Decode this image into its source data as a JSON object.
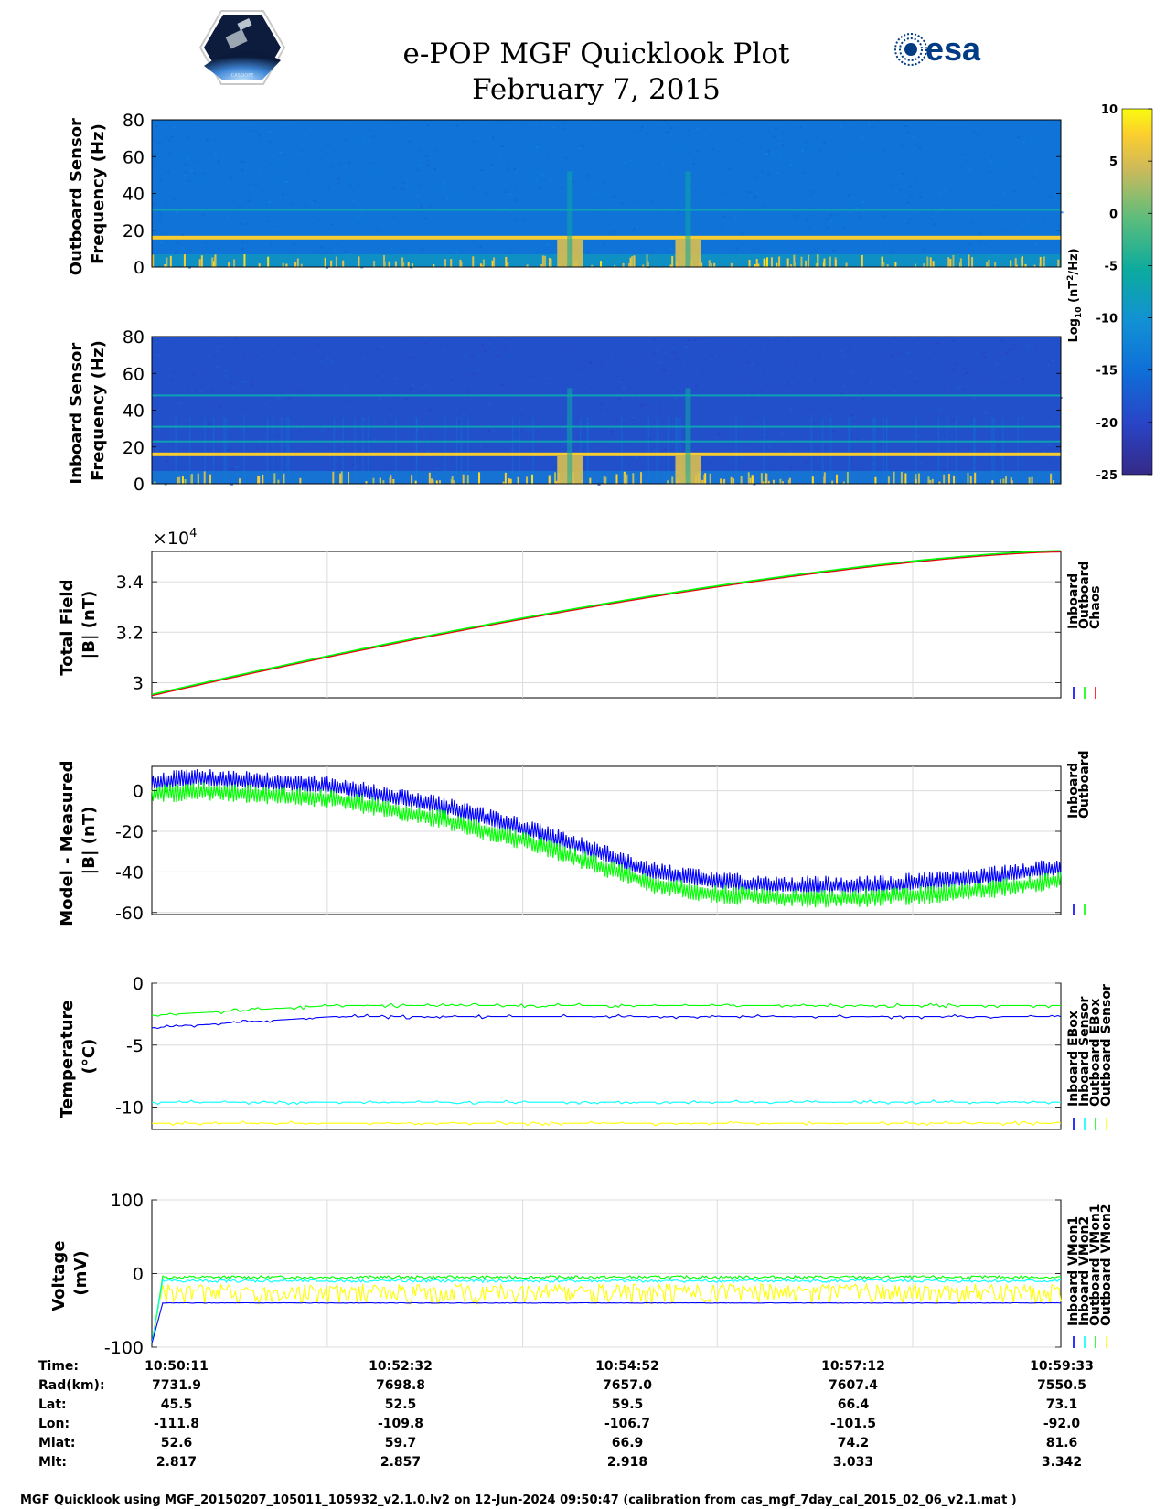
{
  "header": {
    "title_line1": "e-POP MGF Quicklook Plot",
    "title_line2": "February 7, 2015",
    "logo_left_text": "CASSIOPE",
    "logo_right_text": "esa"
  },
  "colorbar": {
    "label": "Log10 (nT^2/Hz)",
    "label_main": "Log",
    "label_sub": "10",
    "label_unit_a": " (nT",
    "label_unit_sup": "2",
    "label_unit_b": "/Hz)",
    "min": -25,
    "max": 10,
    "ticks": [
      "10",
      "5",
      "0",
      "-5",
      "-10",
      "-15",
      "-20",
      "-25"
    ]
  },
  "chart_data": [
    {
      "type": "heatmap",
      "id": "outboard-spectrogram",
      "ylabel_line1": "Outboard Sensor",
      "ylabel_line2": "Frequency (Hz)",
      "ylim": [
        0,
        80
      ],
      "yticks": [
        "0",
        "20",
        "40",
        "60",
        "80"
      ],
      "lines_hz": [
        16,
        31
      ],
      "bursts_fraction": [
        0.46,
        0.59
      ]
    },
    {
      "type": "heatmap",
      "id": "inboard-spectrogram",
      "ylabel_line1": "Inboard Sensor",
      "ylabel_line2": "Frequency (Hz)",
      "ylim": [
        0,
        80
      ],
      "yticks": [
        "0",
        "20",
        "40",
        "60",
        "80"
      ],
      "lines_hz": [
        16,
        23,
        31,
        48
      ],
      "bursts_fraction": [
        0.46,
        0.59
      ]
    },
    {
      "type": "line",
      "id": "total-field",
      "ylabel_line1": "Total Field",
      "ylabel_line2": "|B| (nT)",
      "exponent_label": "×10",
      "exponent_power": "4",
      "ylim": [
        2.94,
        3.52
      ],
      "yticks": [
        "3",
        "3.2",
        "3.4"
      ],
      "ytick_values": [
        3.0,
        3.2,
        3.4
      ],
      "legend": [
        {
          "name": "Inboard",
          "color": "#0000ff"
        },
        {
          "name": "Outboard",
          "color": "#00ff00"
        },
        {
          "name": "Chaos",
          "color": "#ff0000"
        }
      ],
      "series_start": 2.95,
      "series_end": 3.52
    },
    {
      "type": "line",
      "id": "model-minus-measured",
      "ylabel_line1": "Model - Measured",
      "ylabel_line2": "|B| (nT)",
      "ylim": [
        -61,
        12
      ],
      "yticks": [
        "0",
        "-20",
        "-40",
        "-60"
      ],
      "ytick_values": [
        0,
        -20,
        -40,
        -60
      ],
      "legend": [
        {
          "name": "Inboard",
          "color": "#0000ff"
        },
        {
          "name": "Outboard",
          "color": "#00ff00"
        }
      ],
      "profile_x": [
        0,
        0.05,
        0.2,
        0.32,
        0.42,
        0.5,
        0.55,
        0.62,
        0.7,
        0.78,
        0.86,
        0.93,
        1.0
      ],
      "profile_y": [
        4,
        6,
        2,
        -8,
        -20,
        -32,
        -40,
        -45,
        -47,
        -47,
        -45,
        -42,
        -38
      ],
      "offset_outboard": -6,
      "noise_amp": 4
    },
    {
      "type": "line",
      "id": "temperature",
      "ylabel_line1": "Temperature",
      "ylabel_line2": "(°C)",
      "ylim": [
        -11.8,
        0
      ],
      "yticks": [
        "0",
        "-5",
        "-10"
      ],
      "ytick_values": [
        0,
        -5,
        -10
      ],
      "legend": [
        {
          "name": "Inboard EBox",
          "color": "#0000ff"
        },
        {
          "name": "Inboard Sensor",
          "color": "#00ffff"
        },
        {
          "name": "Outboard EBox",
          "color": "#00ff00"
        },
        {
          "name": "Outboard Sensor",
          "color": "#ffff00"
        }
      ],
      "levels": {
        "inboard_ebox": -2.7,
        "inboard_sensor": -9.6,
        "outboard_ebox": -1.8,
        "outboard_sensor": -11.3
      }
    },
    {
      "type": "line",
      "id": "voltage",
      "ylabel_line1": "Voltage",
      "ylabel_line2": "(mV)",
      "ylim": [
        -100,
        100
      ],
      "yticks": [
        "100",
        "0",
        "-100"
      ],
      "ytick_values": [
        100,
        0,
        -100
      ],
      "legend": [
        {
          "name": "Inboard VMon1",
          "color": "#0000ff"
        },
        {
          "name": "Inboard VMon2",
          "color": "#00ffff"
        },
        {
          "name": "Outboard VMon1",
          "color": "#00ff00"
        },
        {
          "name": "Outboard VMon2",
          "color": "#ffff00"
        }
      ],
      "levels": {
        "inboard_vmon1": -40,
        "inboard_vmon2": -10,
        "outboard_vmon1": -5,
        "outboard_vmon2": -20
      }
    }
  ],
  "time_axis": {
    "row_labels": [
      "Time:",
      "Rad(km):",
      "Lat:",
      "Lon:",
      "Mlat:",
      "Mlt:"
    ],
    "columns": [
      [
        "10:50:11",
        "7731.9",
        "45.5",
        "-111.8",
        "52.6",
        "2.817"
      ],
      [
        "10:52:32",
        "7698.8",
        "52.5",
        "-109.8",
        "59.7",
        "2.857"
      ],
      [
        "10:54:52",
        "7657.0",
        "59.5",
        "-106.7",
        "66.9",
        "2.918"
      ],
      [
        "10:57:12",
        "7607.4",
        "66.4",
        "-101.5",
        "74.2",
        "3.033"
      ],
      [
        "10:59:33",
        "7550.5",
        "73.1",
        "-92.0",
        "81.6",
        "3.342"
      ]
    ]
  },
  "footer": {
    "text": "MGF Quicklook using MGF_20150207_105011_105932_v2.1.0.lv2 on 12-Jun-2024 09:50:47 (calibration from cas_mgf_7day_cal_2015_02_06_v2.1.mat )"
  }
}
